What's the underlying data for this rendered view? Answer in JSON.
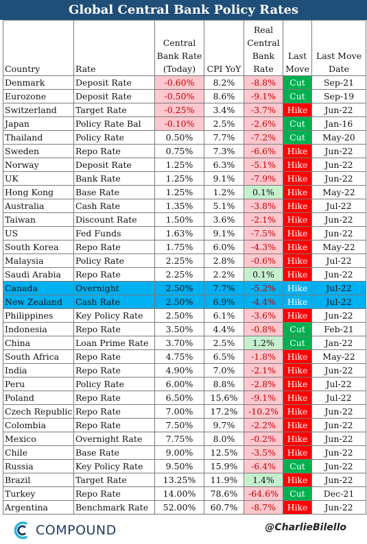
{
  "title": "Global Central Bank Policy Rates",
  "headers": {
    "country": "Country",
    "rate": "Rate",
    "cb_rate": [
      "Central",
      "Bank Rate",
      "(Today)"
    ],
    "cpi": "CPI YoY",
    "real_rate": [
      "Real",
      "Central",
      "Bank",
      "Rate"
    ],
    "last_move": [
      "Last",
      "Move"
    ],
    "last_move_date": [
      "Last Move",
      "Date"
    ]
  },
  "colors": {
    "title_bg": "#1f4e79",
    "highlight": "#00b0f0",
    "cut": "#00b050",
    "hike": "#ff0000",
    "neg_bg": "#ffc7ce",
    "pos_bg": "#c6efce",
    "neg_text": "#c00000"
  },
  "rows": [
    {
      "country": "Denmark",
      "rate": "Deposit Rate",
      "cb": "-0.60%",
      "cpi": "8.2%",
      "real": "-8.8%",
      "move": "Cut",
      "date": "Sep-21"
    },
    {
      "country": "Eurozone",
      "rate": "Deposit Rate",
      "cb": "-0.50%",
      "cpi": "8.6%",
      "real": "-9.1%",
      "move": "Cut",
      "date": "Sep-19"
    },
    {
      "country": "Switzerland",
      "rate": "Target Rate",
      "cb": "-0.25%",
      "cpi": "3.4%",
      "real": "-3.7%",
      "move": "Hike",
      "date": "Jun-22"
    },
    {
      "country": "Japan",
      "rate": "Policy Rate Bal",
      "cb": "-0.10%",
      "cpi": "2.5%",
      "real": "-2.6%",
      "move": "Cut",
      "date": "Jan-16"
    },
    {
      "country": "Thailand",
      "rate": "Policy Rate",
      "cb": "0.50%",
      "cpi": "7.7%",
      "real": "-7.2%",
      "move": "Cut",
      "date": "May-20"
    },
    {
      "country": "Sweden",
      "rate": "Repo Rate",
      "cb": "0.75%",
      "cpi": "7.3%",
      "real": "-6.6%",
      "move": "Hike",
      "date": "Jun-22"
    },
    {
      "country": "Norway",
      "rate": "Deposit Rate",
      "cb": "1.25%",
      "cpi": "6.3%",
      "real": "-5.1%",
      "move": "Hike",
      "date": "Jun-22"
    },
    {
      "country": "UK",
      "rate": "Bank Rate",
      "cb": "1.25%",
      "cpi": "9.1%",
      "real": "-7.9%",
      "move": "Hike",
      "date": "Jun-22"
    },
    {
      "country": "Hong Kong",
      "rate": "Base Rate",
      "cb": "1.25%",
      "cpi": "1.2%",
      "real": "0.1%",
      "move": "Hike",
      "date": "May-22"
    },
    {
      "country": "Australia",
      "rate": "Cash Rate",
      "cb": "1.35%",
      "cpi": "5.1%",
      "real": "-3.8%",
      "move": "Hike",
      "date": "Jul-22"
    },
    {
      "country": "Taiwan",
      "rate": "Discount Rate",
      "cb": "1.50%",
      "cpi": "3.6%",
      "real": "-2.1%",
      "move": "Hike",
      "date": "Jun-22"
    },
    {
      "country": "US",
      "rate": "Fed Funds",
      "cb": "1.63%",
      "cpi": "9.1%",
      "real": "-7.5%",
      "move": "Hike",
      "date": "Jun-22"
    },
    {
      "country": "South Korea",
      "rate": "Repo Rate",
      "cb": "1.75%",
      "cpi": "6.0%",
      "real": "-4.3%",
      "move": "Hike",
      "date": "May-22"
    },
    {
      "country": "Malaysia",
      "rate": "Policy Rate",
      "cb": "2.25%",
      "cpi": "2.8%",
      "real": "-0.6%",
      "move": "Hike",
      "date": "Jul-22"
    },
    {
      "country": "Saudi Arabia",
      "rate": "Repo Rate",
      "cb": "2.25%",
      "cpi": "2.2%",
      "real": "0.1%",
      "move": "Hike",
      "date": "Jun-22"
    },
    {
      "country": "Canada",
      "rate": "Overnight",
      "cb": "2.50%",
      "cpi": "7.7%",
      "real": "-5.2%",
      "move": "Hike",
      "date": "Jul-22",
      "highlight": true
    },
    {
      "country": "New Zealand",
      "rate": "Cash Rate",
      "cb": "2.50%",
      "cpi": "6.9%",
      "real": "-4.4%",
      "move": "Hike",
      "date": "Jul-22",
      "highlight": true
    },
    {
      "country": "Philippines",
      "rate": "Key Policy Rate",
      "cb": "2.50%",
      "cpi": "6.1%",
      "real": "-3.6%",
      "move": "Hike",
      "date": "Jun-22"
    },
    {
      "country": "Indonesia",
      "rate": "Repo Rate",
      "cb": "3.50%",
      "cpi": "4.4%",
      "real": "-0.8%",
      "move": "Cut",
      "date": "Feb-21"
    },
    {
      "country": "China",
      "rate": "Loan Prime Rate",
      "cb": "3.70%",
      "cpi": "2.5%",
      "real": "1.2%",
      "move": "Cut",
      "date": "Jan-22"
    },
    {
      "country": "South Africa",
      "rate": "Repo Rate",
      "cb": "4.75%",
      "cpi": "6.5%",
      "real": "-1.8%",
      "move": "Hike",
      "date": "May-22"
    },
    {
      "country": "India",
      "rate": "Repo Rate",
      "cb": "4.90%",
      "cpi": "7.0%",
      "real": "-2.1%",
      "move": "Hike",
      "date": "Jun-22"
    },
    {
      "country": "Peru",
      "rate": "Policy Rate",
      "cb": "6.00%",
      "cpi": "8.8%",
      "real": "-2.8%",
      "move": "Hike",
      "date": "Jul-22"
    },
    {
      "country": "Poland",
      "rate": "Repo Rate",
      "cb": "6.50%",
      "cpi": "15.6%",
      "real": "-9.1%",
      "move": "Hike",
      "date": "Jul-22"
    },
    {
      "country": "Czech Republic",
      "rate": "Repo Rate",
      "cb": "7.00%",
      "cpi": "17.2%",
      "real": "-10.2%",
      "move": "Hike",
      "date": "Jun-22"
    },
    {
      "country": "Colombia",
      "rate": "Repo Rate",
      "cb": "7.50%",
      "cpi": "9.7%",
      "real": "-2.2%",
      "move": "Hike",
      "date": "Jun-22"
    },
    {
      "country": "Mexico",
      "rate": "Overnight Rate",
      "cb": "7.75%",
      "cpi": "8.0%",
      "real": "-0.2%",
      "move": "Hike",
      "date": "Jun-22"
    },
    {
      "country": "Chile",
      "rate": "Base Rate",
      "cb": "9.00%",
      "cpi": "12.5%",
      "real": "-3.5%",
      "move": "Hike",
      "date": "Jun-22"
    },
    {
      "country": "Russia",
      "rate": "Key Policy Rate",
      "cb": "9.50%",
      "cpi": "15.9%",
      "real": "-6.4%",
      "move": "Cut",
      "date": "Jun-22"
    },
    {
      "country": "Brazil",
      "rate": "Target Rate",
      "cb": "13.25%",
      "cpi": "11.9%",
      "real": "1.4%",
      "move": "Hike",
      "date": "Jun-22"
    },
    {
      "country": "Turkey",
      "rate": "Repo Rate",
      "cb": "14.00%",
      "cpi": "78.6%",
      "real": "-64.6%",
      "move": "Cut",
      "date": "Dec-21"
    },
    {
      "country": "Argentina",
      "rate": "Benchmark Rate",
      "cb": "52.00%",
      "cpi": "60.7%",
      "real": "-8.7%",
      "move": "Hike",
      "date": "Jun-22"
    }
  ],
  "footer": {
    "logo_text": "COMPOUND",
    "logo_icon": "compound-logo-icon",
    "handle": "@CharlieBilello"
  }
}
